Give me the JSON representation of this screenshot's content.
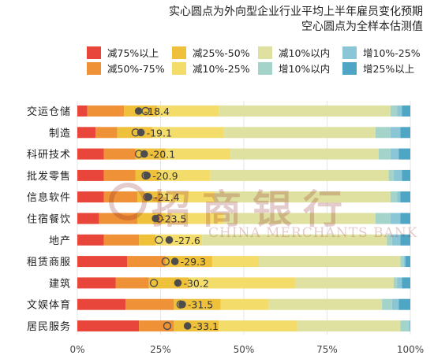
{
  "titles": {
    "line1": "实心圆点为外向型企业行业平均上半年雇员变化预期",
    "line2": "空心圆点为全样本估测值"
  },
  "watermark": {
    "cn": "招商银行",
    "en": "CHINA MERCHANTS BANK"
  },
  "colors": {
    "c1": "#e8463a",
    "c2": "#ee9137",
    "c3": "#efc03a",
    "c4": "#f4dc6a",
    "c5": "#dfe1a0",
    "c6": "#a3d3c9",
    "c7": "#8ac6d6",
    "c8": "#4ea5c4",
    "dot": "#4d4d4d",
    "grid": "#e5e5e5"
  },
  "chart_data": {
    "type": "bar",
    "orientation": "horizontal",
    "stacked": true,
    "xlim": [
      0,
      100
    ],
    "x_ticks": [
      "0%",
      "25%",
      "50%",
      "75%",
      "100%"
    ],
    "legend_position": "top",
    "categories": [
      "交运仓储",
      "制造",
      "科研技术",
      "批发零售",
      "信息软件",
      "住宿餐饮",
      "地产",
      "租赁商服",
      "建筑",
      "文娱体育",
      "居民服务"
    ],
    "series": [
      {
        "name": "减75%以上",
        "color_key": "c1",
        "values": [
          3,
          5.5,
          8,
          8,
          8,
          6.5,
          8,
          15,
          11.5,
          14.5,
          18.5
        ]
      },
      {
        "name": "减50%-75%",
        "color_key": "c2",
        "values": [
          11,
          6.5,
          9.5,
          9.5,
          10,
          11.5,
          10.5,
          11.5,
          10,
          14.5,
          10.5
        ]
      },
      {
        "name": "减25%-50%",
        "color_key": "c3",
        "values": [
          10,
          10.5,
          9,
          7,
          7,
          8.5,
          5,
          14,
          12,
          14,
          13.5
        ]
      },
      {
        "name": "减10%-25%",
        "color_key": "c4",
        "values": [
          18.5,
          21.5,
          19.5,
          15.5,
          16,
          17.5,
          14,
          14,
          32,
          14.5,
          23.5
        ]
      },
      {
        "name": "减10%以内",
        "color_key": "c5",
        "values": [
          51.5,
          45.5,
          44.5,
          53.5,
          53,
          45.5,
          55.5,
          42.5,
          29.5,
          34,
          31
        ]
      },
      {
        "name": "增10%以内",
        "color_key": "c6",
        "values": [
          2,
          4.5,
          3.5,
          1.5,
          2,
          4.5,
          1.5,
          1,
          1,
          3,
          2.5
        ]
      },
      {
        "name": "增10%-25%",
        "color_key": "c7",
        "values": [
          1.5,
          3,
          2.5,
          2.5,
          1,
          3,
          2.5,
          0.5,
          1.5,
          2,
          0.5
        ]
      },
      {
        "name": "增25%以上",
        "color_key": "c8",
        "values": [
          2.5,
          3,
          3.5,
          2.5,
          3,
          3,
          3,
          1.5,
          2.5,
          3.5,
          0
        ]
      }
    ],
    "solid_dot_values": [
      -18.4,
      -19.1,
      -20.1,
      -20.9,
      -21.4,
      -23.5,
      -27.6,
      -29.3,
      -30.2,
      -31.5,
      -33.1
    ],
    "solid_dot_labels": [
      "-18.4",
      "-19.1",
      "-20.1",
      "-20.9",
      "-21.4",
      "-23.5",
      "-27.6",
      "-29.3",
      "-30.2",
      "-31.5",
      "-33.1"
    ],
    "solid_dot_positions_pct": [
      18.4,
      19.1,
      20.1,
      20.9,
      21.4,
      23.5,
      27.6,
      29.3,
      30.2,
      31.5,
      33.1
    ],
    "hollow_dot_positions_pct": [
      20.5,
      17.5,
      18.5,
      20.5,
      21,
      24.5,
      24.5,
      26.5,
      23,
      31,
      27
    ]
  }
}
